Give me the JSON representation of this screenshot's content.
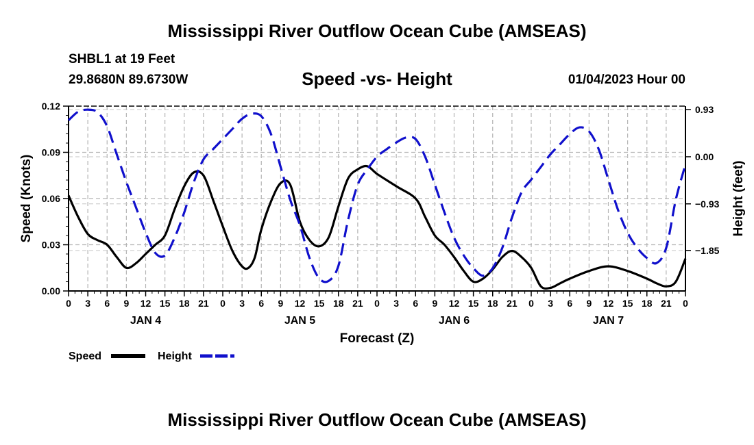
{
  "header": {
    "title": "Mississippi River Outflow Ocean Cube (AMSEAS)",
    "station": "SHBL1 at 19 Feet",
    "coordinates": "29.8680N  89.6730W",
    "subtitle": "Speed -vs- Height",
    "timestamp": "01/04/2023 Hour 00"
  },
  "footer": {
    "title": "Mississippi River Outflow Ocean Cube (AMSEAS)"
  },
  "chart_data": {
    "type": "line",
    "xlabel": "Forecast (Z)",
    "ylabel": "Speed (Knots)",
    "y2label": "Height (feet)",
    "xlim": [
      0,
      96
    ],
    "ylim": [
      0,
      0.12
    ],
    "y2lim": [
      -2.65,
      1.0
    ],
    "x_tick_labels": [
      "0",
      "3",
      "6",
      "9",
      "12",
      "15",
      "18",
      "21",
      "0",
      "3",
      "6",
      "9",
      "12",
      "15",
      "18",
      "21",
      "0",
      "3",
      "6",
      "9",
      "12",
      "15",
      "18",
      "21",
      "0",
      "3",
      "6",
      "9",
      "12",
      "15",
      "18",
      "21",
      "0"
    ],
    "day_labels": [
      {
        "x": 12,
        "label": "JAN 4"
      },
      {
        "x": 36,
        "label": "JAN 5"
      },
      {
        "x": 60,
        "label": "JAN 6"
      },
      {
        "x": 84,
        "label": "JAN 7"
      }
    ],
    "y_ticks": [
      {
        "value": 0.0,
        "label": "0.00"
      },
      {
        "value": 0.03,
        "label": "0.03"
      },
      {
        "value": 0.06,
        "label": "0.06"
      },
      {
        "value": 0.09,
        "label": "0.09"
      },
      {
        "value": 0.12,
        "label": "0.12"
      }
    ],
    "y2_ticks": [
      {
        "value": 0.93,
        "label": "0.93"
      },
      {
        "value": 0.0,
        "label": "0.00"
      },
      {
        "value": -0.93,
        "label": "−0.93"
      },
      {
        "value": -1.85,
        "label": "−1.85"
      }
    ],
    "grid": true,
    "legend": [
      {
        "name": "Speed",
        "color": "#000000",
        "dash": "solid"
      },
      {
        "name": "Height",
        "color": "#1010cc",
        "dash": "dashed"
      }
    ],
    "series": [
      {
        "name": "Speed",
        "axis": "left",
        "color": "#000000",
        "points": [
          [
            0,
            0.062
          ],
          [
            1.5,
            0.048
          ],
          [
            3,
            0.037
          ],
          [
            4.5,
            0.033
          ],
          [
            6,
            0.03
          ],
          [
            7.5,
            0.022
          ],
          [
            9,
            0.015
          ],
          [
            10.5,
            0.018
          ],
          [
            12,
            0.024
          ],
          [
            13.5,
            0.03
          ],
          [
            15,
            0.036
          ],
          [
            16.5,
            0.053
          ],
          [
            18,
            0.068
          ],
          [
            19.5,
            0.077
          ],
          [
            21,
            0.075
          ],
          [
            22.5,
            0.059
          ],
          [
            24,
            0.042
          ],
          [
            25.5,
            0.026
          ],
          [
            27,
            0.016
          ],
          [
            28,
            0.015
          ],
          [
            29,
            0.022
          ],
          [
            30,
            0.04
          ],
          [
            31.5,
            0.058
          ],
          [
            33,
            0.07
          ],
          [
            34.5,
            0.069
          ],
          [
            36,
            0.045
          ],
          [
            37.5,
            0.033
          ],
          [
            39,
            0.029
          ],
          [
            40.5,
            0.035
          ],
          [
            42,
            0.055
          ],
          [
            43.5,
            0.073
          ],
          [
            45,
            0.079
          ],
          [
            46.5,
            0.081
          ],
          [
            48,
            0.076
          ],
          [
            51,
            0.068
          ],
          [
            54,
            0.06
          ],
          [
            55.5,
            0.048
          ],
          [
            57,
            0.036
          ],
          [
            58.5,
            0.03
          ],
          [
            60,
            0.022
          ],
          [
            61.5,
            0.013
          ],
          [
            63,
            0.006
          ],
          [
            64.5,
            0.008
          ],
          [
            66,
            0.014
          ],
          [
            67.5,
            0.022
          ],
          [
            69,
            0.026
          ],
          [
            70.5,
            0.022
          ],
          [
            72,
            0.015
          ],
          [
            73.5,
            0.003
          ],
          [
            75,
            0.002
          ],
          [
            76.5,
            0.005
          ],
          [
            78,
            0.008
          ],
          [
            81,
            0.013
          ],
          [
            84,
            0.016
          ],
          [
            87,
            0.013
          ],
          [
            90,
            0.008
          ],
          [
            91.5,
            0.005
          ],
          [
            93,
            0.003
          ],
          [
            94.5,
            0.006
          ],
          [
            96,
            0.021
          ]
        ]
      },
      {
        "name": "Height",
        "axis": "right",
        "color": "#1010cc",
        "points": [
          [
            0,
            0.72
          ],
          [
            1.5,
            0.89
          ],
          [
            3,
            0.93
          ],
          [
            4.5,
            0.88
          ],
          [
            6,
            0.6
          ],
          [
            7.5,
            0.05
          ],
          [
            9,
            -0.5
          ],
          [
            10.5,
            -1.0
          ],
          [
            12,
            -1.5
          ],
          [
            13.5,
            -1.9
          ],
          [
            15,
            -1.95
          ],
          [
            16.5,
            -1.6
          ],
          [
            18,
            -1.1
          ],
          [
            19.5,
            -0.5
          ],
          [
            21,
            -0.05
          ],
          [
            22.5,
            0.15
          ],
          [
            24,
            0.35
          ],
          [
            25.5,
            0.55
          ],
          [
            27,
            0.75
          ],
          [
            28.5,
            0.85
          ],
          [
            30,
            0.8
          ],
          [
            31.5,
            0.45
          ],
          [
            33,
            -0.2
          ],
          [
            34.5,
            -0.85
          ],
          [
            36,
            -1.35
          ],
          [
            37.5,
            -2.0
          ],
          [
            39,
            -2.4
          ],
          [
            40.5,
            -2.45
          ],
          [
            42,
            -2.15
          ],
          [
            43.5,
            -1.25
          ],
          [
            45,
            -0.55
          ],
          [
            46.5,
            -0.25
          ],
          [
            48,
            0.0
          ],
          [
            49.5,
            0.15
          ],
          [
            51,
            0.28
          ],
          [
            52.5,
            0.38
          ],
          [
            54,
            0.35
          ],
          [
            55.5,
            0.0
          ],
          [
            57,
            -0.55
          ],
          [
            58.5,
            -1.1
          ],
          [
            60,
            -1.6
          ],
          [
            61.5,
            -1.95
          ],
          [
            63,
            -2.2
          ],
          [
            64.5,
            -2.35
          ],
          [
            66,
            -2.2
          ],
          [
            67.5,
            -1.8
          ],
          [
            69,
            -1.2
          ],
          [
            70.5,
            -0.7
          ],
          [
            72,
            -0.45
          ],
          [
            73.5,
            -0.2
          ],
          [
            75,
            0.05
          ],
          [
            76.5,
            0.25
          ],
          [
            78,
            0.45
          ],
          [
            79.5,
            0.58
          ],
          [
            81,
            0.5
          ],
          [
            82.5,
            0.15
          ],
          [
            84,
            -0.45
          ],
          [
            85.5,
            -1.05
          ],
          [
            87,
            -1.5
          ],
          [
            88.5,
            -1.8
          ],
          [
            90,
            -2.0
          ],
          [
            91.5,
            -2.1
          ],
          [
            93,
            -1.8
          ],
          [
            94.5,
            -0.85
          ],
          [
            96,
            -0.15
          ]
        ]
      }
    ]
  }
}
